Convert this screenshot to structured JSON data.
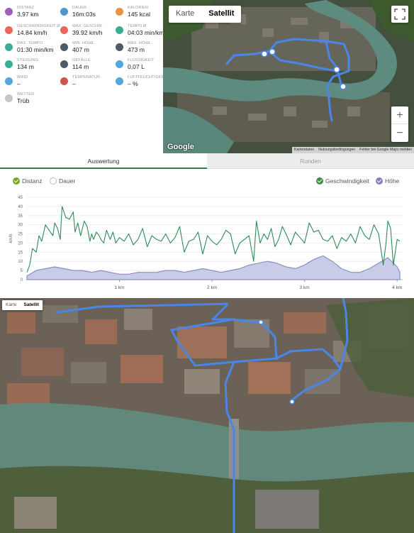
{
  "stats": [
    {
      "label": "DISTANZ",
      "value": "3,97 km",
      "icon": "route-icon",
      "color": "#8e44ad"
    },
    {
      "label": "DAUER",
      "value": "16m:03s",
      "icon": "stopwatch-icon",
      "color": "#2e86c1"
    },
    {
      "label": "KALORIEN",
      "value": "145 kcal",
      "icon": "flame-icon",
      "color": "#e67e22"
    },
    {
      "label": "GESCHWINDIGKEIT Ø",
      "value": "14.84 km/h",
      "icon": "speedometer-icon",
      "color": "#e74c3c"
    },
    {
      "label": "MAX. GESCHW.",
      "value": "39.92 km/h",
      "icon": "speedometer-max-icon",
      "color": "#e74c3c"
    },
    {
      "label": "TEMPO Ø",
      "value": "04:03 min/km",
      "icon": "pace-icon",
      "color": "#16a085"
    },
    {
      "label": "MAX. TEMPO",
      "value": "01:30 min/km",
      "icon": "pace-max-icon",
      "color": "#16a085"
    },
    {
      "label": "MIN. HÖHE",
      "value": "407 m",
      "icon": "mountain-min-icon",
      "color": "#2c3e50"
    },
    {
      "label": "MAX. HÖHE",
      "value": "473 m",
      "icon": "mountain-max-icon",
      "color": "#2c3e50"
    },
    {
      "label": "STEIGUNG",
      "value": "134 m",
      "icon": "ascent-icon",
      "color": "#16a085"
    },
    {
      "label": "GEFÄLLE",
      "value": "114 m",
      "icon": "descent-icon",
      "color": "#2c3e50"
    },
    {
      "label": "FLÜSSIGKEIT",
      "value": "0,07 L",
      "icon": "water-drops-icon",
      "color": "#3498db"
    },
    {
      "label": "WIND",
      "value": "–",
      "icon": "wind-icon",
      "color": "#3498db"
    },
    {
      "label": "TEMPERATUR",
      "value": "–",
      "icon": "thermometer-icon",
      "color": "#c0392b"
    },
    {
      "label": "LUFTFEUCHTIGKEIT",
      "value": "– %",
      "icon": "humidity-icon",
      "color": "#3498db"
    },
    {
      "label": "WETTER",
      "value": "Trüb",
      "icon": "cloud-icon",
      "color": "#bbbbbb"
    }
  ],
  "map_top": {
    "type_map": "Karte",
    "type_satellite": "Satellit",
    "zoom_in": "+",
    "zoom_out": "−",
    "logo": "Google",
    "attribution": [
      "Kartendaten",
      "Nutzungsbedingungen",
      "Fehler bei Google Maps melden"
    ],
    "route_color": "#4a86e8"
  },
  "tabs": [
    {
      "label": "Auswertung",
      "active": true
    },
    {
      "label": "Runden",
      "active": false
    }
  ],
  "chart_toggles": {
    "distance": "Distanz",
    "duration": "Dauer",
    "speed": "Geschwindigkeit",
    "altitude": "Höhe"
  },
  "chart_data": {
    "type": "line",
    "x_unit_labels": [
      "1 km",
      "2 km",
      "3 km",
      "4 km"
    ],
    "x_ticks": [
      1,
      2,
      3,
      4
    ],
    "xlim": [
      0,
      4.06
    ],
    "ylabel": "km/h",
    "ylim": [
      0,
      45
    ],
    "y_ticks": [
      0,
      5,
      10,
      15,
      20,
      25,
      30,
      35,
      40,
      45
    ],
    "speed_color": "#2e8b57",
    "altitude_color": "#8a8fc4",
    "series": [
      {
        "name": "Geschwindigkeit",
        "x": [
          0.0,
          0.03,
          0.06,
          0.1,
          0.13,
          0.16,
          0.2,
          0.24,
          0.28,
          0.3,
          0.33,
          0.36,
          0.38,
          0.42,
          0.46,
          0.5,
          0.52,
          0.55,
          0.58,
          0.6,
          0.62,
          0.65,
          0.68,
          0.7,
          0.72,
          0.75,
          0.78,
          0.8,
          0.83,
          0.86,
          0.9,
          0.93,
          0.96,
          1.0,
          1.05,
          1.1,
          1.15,
          1.2,
          1.25,
          1.3,
          1.35,
          1.4,
          1.45,
          1.5,
          1.55,
          1.6,
          1.65,
          1.7,
          1.75,
          1.8,
          1.85,
          1.9,
          1.95,
          2.0,
          2.05,
          2.1,
          2.15,
          2.2,
          2.25,
          2.3,
          2.35,
          2.4,
          2.45,
          2.48,
          2.52,
          2.56,
          2.6,
          2.64,
          2.68,
          2.72,
          2.76,
          2.8,
          2.85,
          2.9,
          2.95,
          3.0,
          3.05,
          3.1,
          3.15,
          3.2,
          3.25,
          3.3,
          3.35,
          3.4,
          3.45,
          3.5,
          3.55,
          3.6,
          3.65,
          3.7,
          3.75,
          3.8,
          3.85,
          3.88,
          3.9,
          3.93,
          3.96,
          4.0,
          4.03
        ],
        "values": [
          4,
          8,
          17,
          15,
          24,
          21,
          30,
          27,
          24,
          31,
          28,
          22,
          40,
          34,
          33,
          37,
          26,
          31,
          24,
          28,
          32,
          29,
          21,
          25,
          22,
          26,
          24,
          22,
          20,
          27,
          22,
          26,
          20,
          23,
          21,
          25,
          19,
          22,
          28,
          18,
          24,
          22,
          21,
          25,
          20,
          23,
          29,
          15,
          21,
          22,
          26,
          14,
          24,
          21,
          19,
          22,
          27,
          25,
          14,
          20,
          22,
          24,
          10,
          32,
          20,
          25,
          22,
          28,
          18,
          22,
          29,
          25,
          19,
          26,
          23,
          20,
          31,
          26,
          27,
          22,
          21,
          24,
          17,
          23,
          21,
          25,
          20,
          29,
          24,
          22,
          30,
          25,
          8,
          20,
          32,
          28,
          8,
          22,
          21
        ]
      },
      {
        "name": "Höhe",
        "x": [
          0.0,
          0.1,
          0.2,
          0.3,
          0.4,
          0.5,
          0.6,
          0.7,
          0.8,
          0.9,
          1.0,
          1.1,
          1.2,
          1.3,
          1.4,
          1.5,
          1.6,
          1.7,
          1.8,
          1.9,
          2.0,
          2.1,
          2.2,
          2.3,
          2.4,
          2.5,
          2.6,
          2.7,
          2.8,
          2.9,
          3.0,
          3.1,
          3.2,
          3.3,
          3.4,
          3.5,
          3.6,
          3.7,
          3.8,
          3.9,
          4.0,
          4.03
        ],
        "values": [
          2,
          5,
          6,
          7,
          6,
          5,
          5,
          4,
          5,
          4,
          3,
          3,
          4,
          4,
          4,
          5,
          5,
          4,
          5,
          6,
          5,
          4,
          5,
          6,
          8,
          9,
          10,
          9,
          7,
          6,
          8,
          11,
          13,
          10,
          6,
          4,
          4,
          6,
          9,
          12,
          7,
          4
        ]
      }
    ]
  },
  "map_bottom": {
    "type_map": "Karte",
    "type_satellite": "Satellit",
    "route_color": "#4a86e8"
  }
}
